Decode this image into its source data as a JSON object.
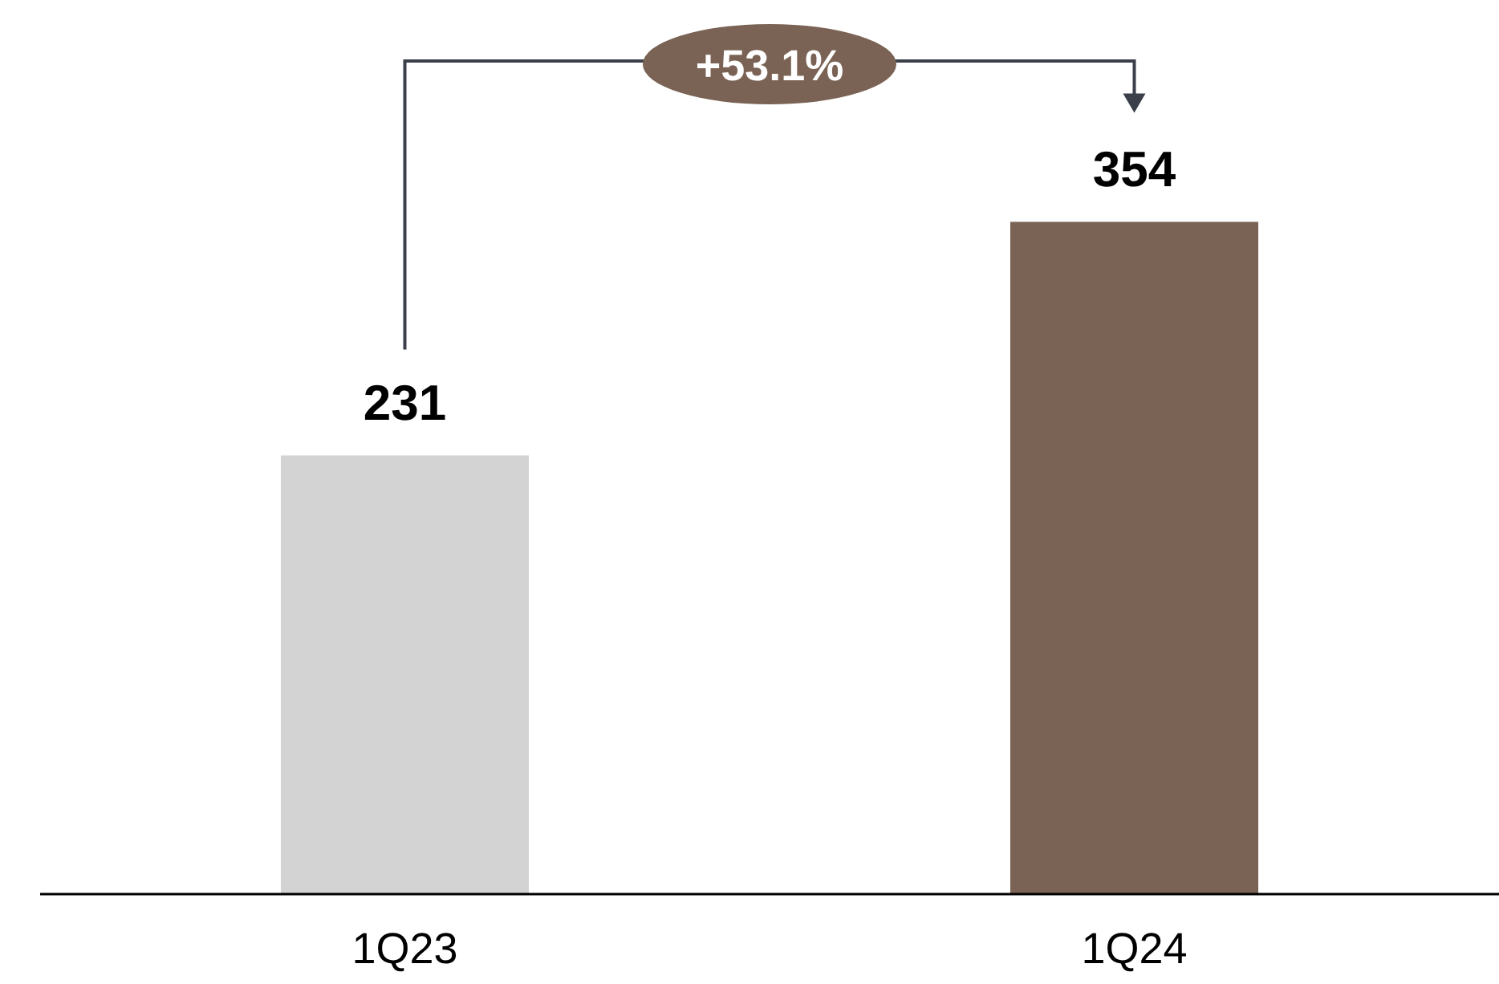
{
  "chart_data": {
    "type": "bar",
    "categories": [
      "1Q23",
      "1Q24"
    ],
    "values": [
      231,
      354
    ],
    "colors": [
      "#d3d3d3",
      "#7a6354"
    ],
    "data_labels": true,
    "annotations": [
      "+53.1%"
    ]
  }
}
